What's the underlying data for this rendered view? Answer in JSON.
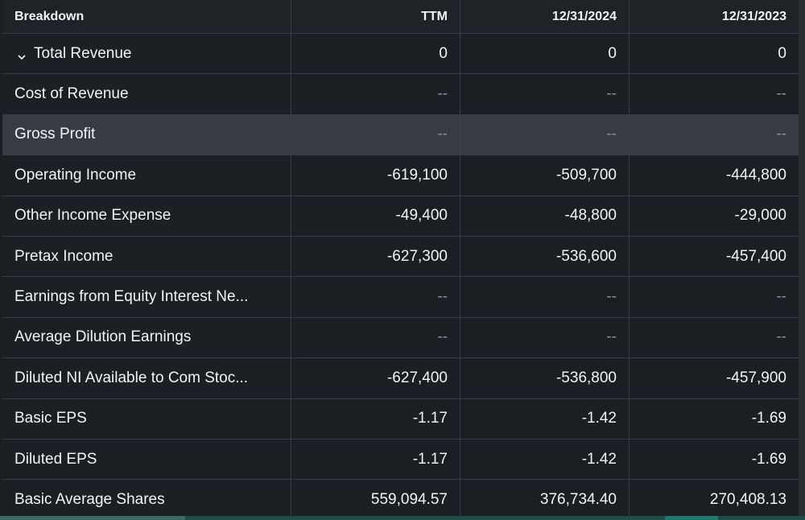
{
  "header": {
    "breakdown": "Breakdown",
    "columns": [
      "TTM",
      "12/31/2024",
      "12/31/2023"
    ]
  },
  "rows": [
    {
      "label": "Total Revenue",
      "values": [
        "0",
        "0",
        "0"
      ]
    },
    {
      "label": "Cost of Revenue",
      "values": [
        "--",
        "--",
        "--"
      ]
    },
    {
      "label": "Gross Profit",
      "values": [
        "--",
        "--",
        "--"
      ]
    },
    {
      "label": "Operating Income",
      "values": [
        "-619,100",
        "-509,700",
        "-444,800"
      ]
    },
    {
      "label": "Other Income Expense",
      "values": [
        "-49,400",
        "-48,800",
        "-29,000"
      ]
    },
    {
      "label": "Pretax Income",
      "values": [
        "-627,300",
        "-536,600",
        "-457,400"
      ]
    },
    {
      "label": "Earnings from Equity Interest Ne...",
      "values": [
        "--",
        "--",
        "--"
      ]
    },
    {
      "label": "Average Dilution Earnings",
      "values": [
        "--",
        "--",
        "--"
      ]
    },
    {
      "label": "Diluted NI Available to Com Stoc...",
      "values": [
        "-627,400",
        "-536,800",
        "-457,900"
      ]
    },
    {
      "label": "Basic EPS",
      "values": [
        "-1.17",
        "-1.42",
        "-1.69"
      ]
    },
    {
      "label": "Diluted EPS",
      "values": [
        "-1.17",
        "-1.42",
        "-1.69"
      ]
    },
    {
      "label": "Basic Average Shares",
      "values": [
        "559,094.57",
        "376,734.40",
        "270,408.13"
      ]
    }
  ],
  "icons": {
    "expand": "chevron-down-icon"
  },
  "colors": {
    "background": "#1b1e22",
    "highlight_row": "#373c42",
    "text": "#f2f3f5",
    "scrollbar": "#1d4d46"
  }
}
